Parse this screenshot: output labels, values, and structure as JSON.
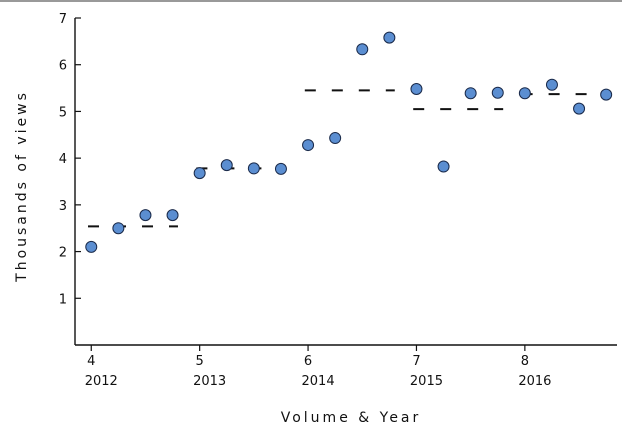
{
  "chart_data": {
    "type": "scatter",
    "ylabel": "Thousands of views",
    "xlabel": "Volume & Year",
    "ylim": [
      0,
      7
    ],
    "xlim": [
      3.85,
      8.85
    ],
    "y_ticks": [
      1,
      2,
      3,
      4,
      5,
      6,
      7
    ],
    "x_ticks": [
      {
        "volume": "4",
        "year": "2012",
        "value": 4
      },
      {
        "volume": "5",
        "year": "2013",
        "value": 5
      },
      {
        "volume": "6",
        "year": "2014",
        "value": 6
      },
      {
        "volume": "7",
        "year": "2015",
        "value": 7
      },
      {
        "volume": "8",
        "year": "2016",
        "value": 8
      }
    ],
    "points": [
      {
        "x": 4.0,
        "y": 2.1
      },
      {
        "x": 4.25,
        "y": 2.5
      },
      {
        "x": 4.5,
        "y": 2.78
      },
      {
        "x": 4.75,
        "y": 2.78
      },
      {
        "x": 5.0,
        "y": 3.68
      },
      {
        "x": 5.25,
        "y": 3.85
      },
      {
        "x": 5.5,
        "y": 3.78
      },
      {
        "x": 5.75,
        "y": 3.77
      },
      {
        "x": 6.0,
        "y": 4.28
      },
      {
        "x": 6.25,
        "y": 4.43
      },
      {
        "x": 6.5,
        "y": 6.33
      },
      {
        "x": 6.75,
        "y": 6.58
      },
      {
        "x": 7.0,
        "y": 5.48
      },
      {
        "x": 7.25,
        "y": 3.82
      },
      {
        "x": 7.5,
        "y": 5.39
      },
      {
        "x": 7.75,
        "y": 5.4
      },
      {
        "x": 8.0,
        "y": 5.39
      },
      {
        "x": 8.25,
        "y": 5.57
      },
      {
        "x": 8.5,
        "y": 5.06
      },
      {
        "x": 8.75,
        "y": 5.36
      }
    ],
    "means": [
      {
        "x_start": 3.97,
        "x_end": 4.8,
        "y": 2.54
      },
      {
        "x_start": 4.97,
        "x_end": 5.8,
        "y": 3.78
      },
      {
        "x_start": 5.97,
        "x_end": 6.8,
        "y": 5.45
      },
      {
        "x_start": 6.97,
        "x_end": 7.8,
        "y": 5.05
      },
      {
        "x_start": 7.97,
        "x_end": 8.8,
        "y": 5.37
      }
    ],
    "grid": false,
    "colors": {
      "point_fill": "#5b8ed1",
      "point_stroke": "#1a2a4a",
      "mean_line": "#111111"
    }
  }
}
